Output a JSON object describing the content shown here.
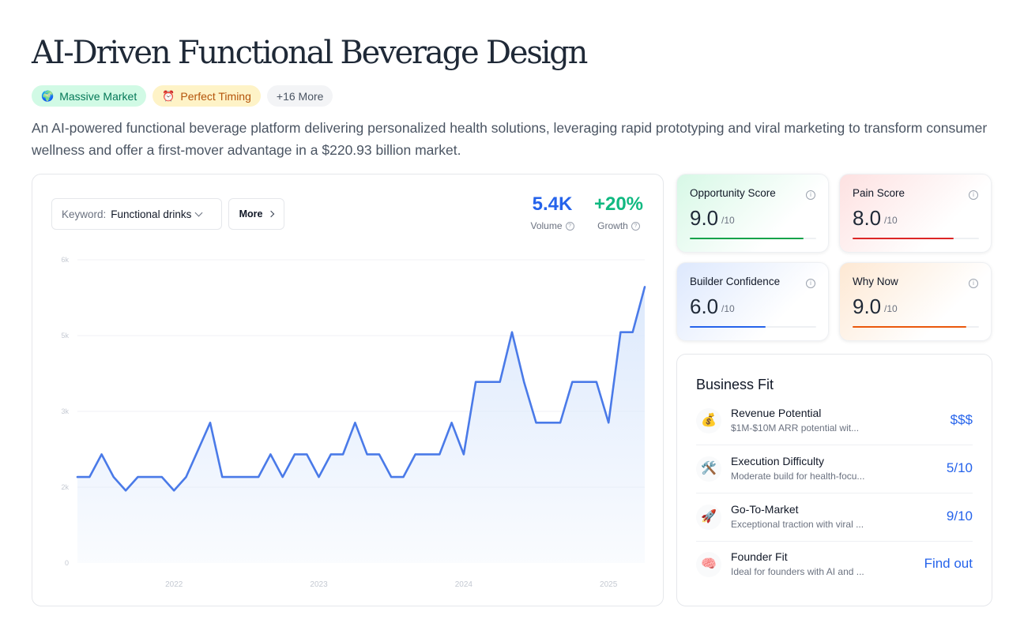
{
  "title": "AI-Driven Functional Beverage Design",
  "tags": [
    {
      "icon": "🌍",
      "icon_name": "globe-icon",
      "label": "Massive Market"
    },
    {
      "icon": "⏰",
      "icon_name": "alarm-clock-icon",
      "label": "Perfect Timing"
    },
    {
      "label": "+16 More"
    }
  ],
  "description": "An AI-powered functional beverage platform delivering personalized health solutions, leveraging rapid prototyping and viral marketing to transform consumer wellness and offer a first-mover advantage in a $220.93 billion market.",
  "keyword": {
    "label": "Keyword:",
    "value": "Functional drinks"
  },
  "more_button": "More",
  "metrics": {
    "volume": {
      "value": "5.4K",
      "label": "Volume",
      "color": "#2563eb"
    },
    "growth": {
      "value": "+20%",
      "label": "Growth",
      "color": "#10b981"
    }
  },
  "chart_data": {
    "type": "area",
    "x_tick_labels": [
      "2022",
      "2023",
      "2024",
      "2025"
    ],
    "y_tick_labels": [
      "6k",
      "5k",
      "3k",
      "2k",
      "0"
    ],
    "x": [
      "2021-05",
      "2021-06",
      "2021-07",
      "2021-08",
      "2021-09",
      "2021-10",
      "2021-11",
      "2021-12",
      "2022-01",
      "2022-02",
      "2022-03",
      "2022-04",
      "2022-05",
      "2022-06",
      "2022-07",
      "2022-08",
      "2022-09",
      "2022-10",
      "2022-11",
      "2022-12",
      "2023-01",
      "2023-02",
      "2023-03",
      "2023-04",
      "2023-05",
      "2023-06",
      "2023-07",
      "2023-08",
      "2023-09",
      "2023-10",
      "2023-11",
      "2023-12",
      "2024-01",
      "2024-02",
      "2024-03",
      "2024-04",
      "2024-05",
      "2024-06",
      "2024-07",
      "2024-08",
      "2024-09",
      "2024-10",
      "2024-11",
      "2024-12",
      "2025-01",
      "2025-02",
      "2025-03",
      "2025-04"
    ],
    "series": [
      {
        "values": [
          1900,
          1900,
          2400,
          1900,
          1600,
          1900,
          1900,
          1900,
          1600,
          1900,
          2500,
          3100,
          1900,
          1900,
          1900,
          1900,
          2400,
          1900,
          2400,
          2400,
          1900,
          2400,
          2400,
          3100,
          2400,
          2400,
          1900,
          1900,
          2400,
          2400,
          2400,
          3100,
          2400,
          4000,
          4000,
          4000,
          5100,
          4000,
          3100,
          3100,
          3100,
          4000,
          4000,
          4000,
          3100,
          5100,
          5100,
          6100
        ]
      }
    ],
    "ylim": [
      0,
      6700
    ],
    "line_color": "#4a7ae8",
    "fill_color": "#dbe8fc",
    "grid": true
  },
  "scores": {
    "opportunity": {
      "title": "Opportunity Score",
      "value": "9.0",
      "max": "/10",
      "score": 9.0,
      "color": "#16a34a"
    },
    "pain": {
      "title": "Pain Score",
      "value": "8.0",
      "max": "/10",
      "score": 8.0,
      "color": "#dc2626"
    },
    "builder": {
      "title": "Builder Confidence",
      "value": "6.0",
      "max": "/10",
      "score": 6.0,
      "color": "#2563eb"
    },
    "why_now": {
      "title": "Why Now",
      "value": "9.0",
      "max": "/10",
      "score": 9.0,
      "color": "#ea580c"
    }
  },
  "business_fit": {
    "title": "Business Fit",
    "rows": [
      {
        "icon": "💰",
        "icon_name": "money-bag-icon",
        "name": "Revenue Potential",
        "desc": "$1M-$10M ARR potential wit...",
        "value": "$$$"
      },
      {
        "icon": "🛠️",
        "icon_name": "tools-icon",
        "name": "Execution Difficulty",
        "desc": "Moderate build for health-focu...",
        "value": "5/10"
      },
      {
        "icon": "🚀",
        "icon_name": "rocket-icon",
        "name": "Go-To-Market",
        "desc": "Exceptional traction with viral ...",
        "value": "9/10"
      },
      {
        "icon": "🧠",
        "icon_name": "brain-icon",
        "name": "Founder Fit",
        "desc": "Ideal for founders with AI and ...",
        "value": "Find out"
      }
    ]
  }
}
